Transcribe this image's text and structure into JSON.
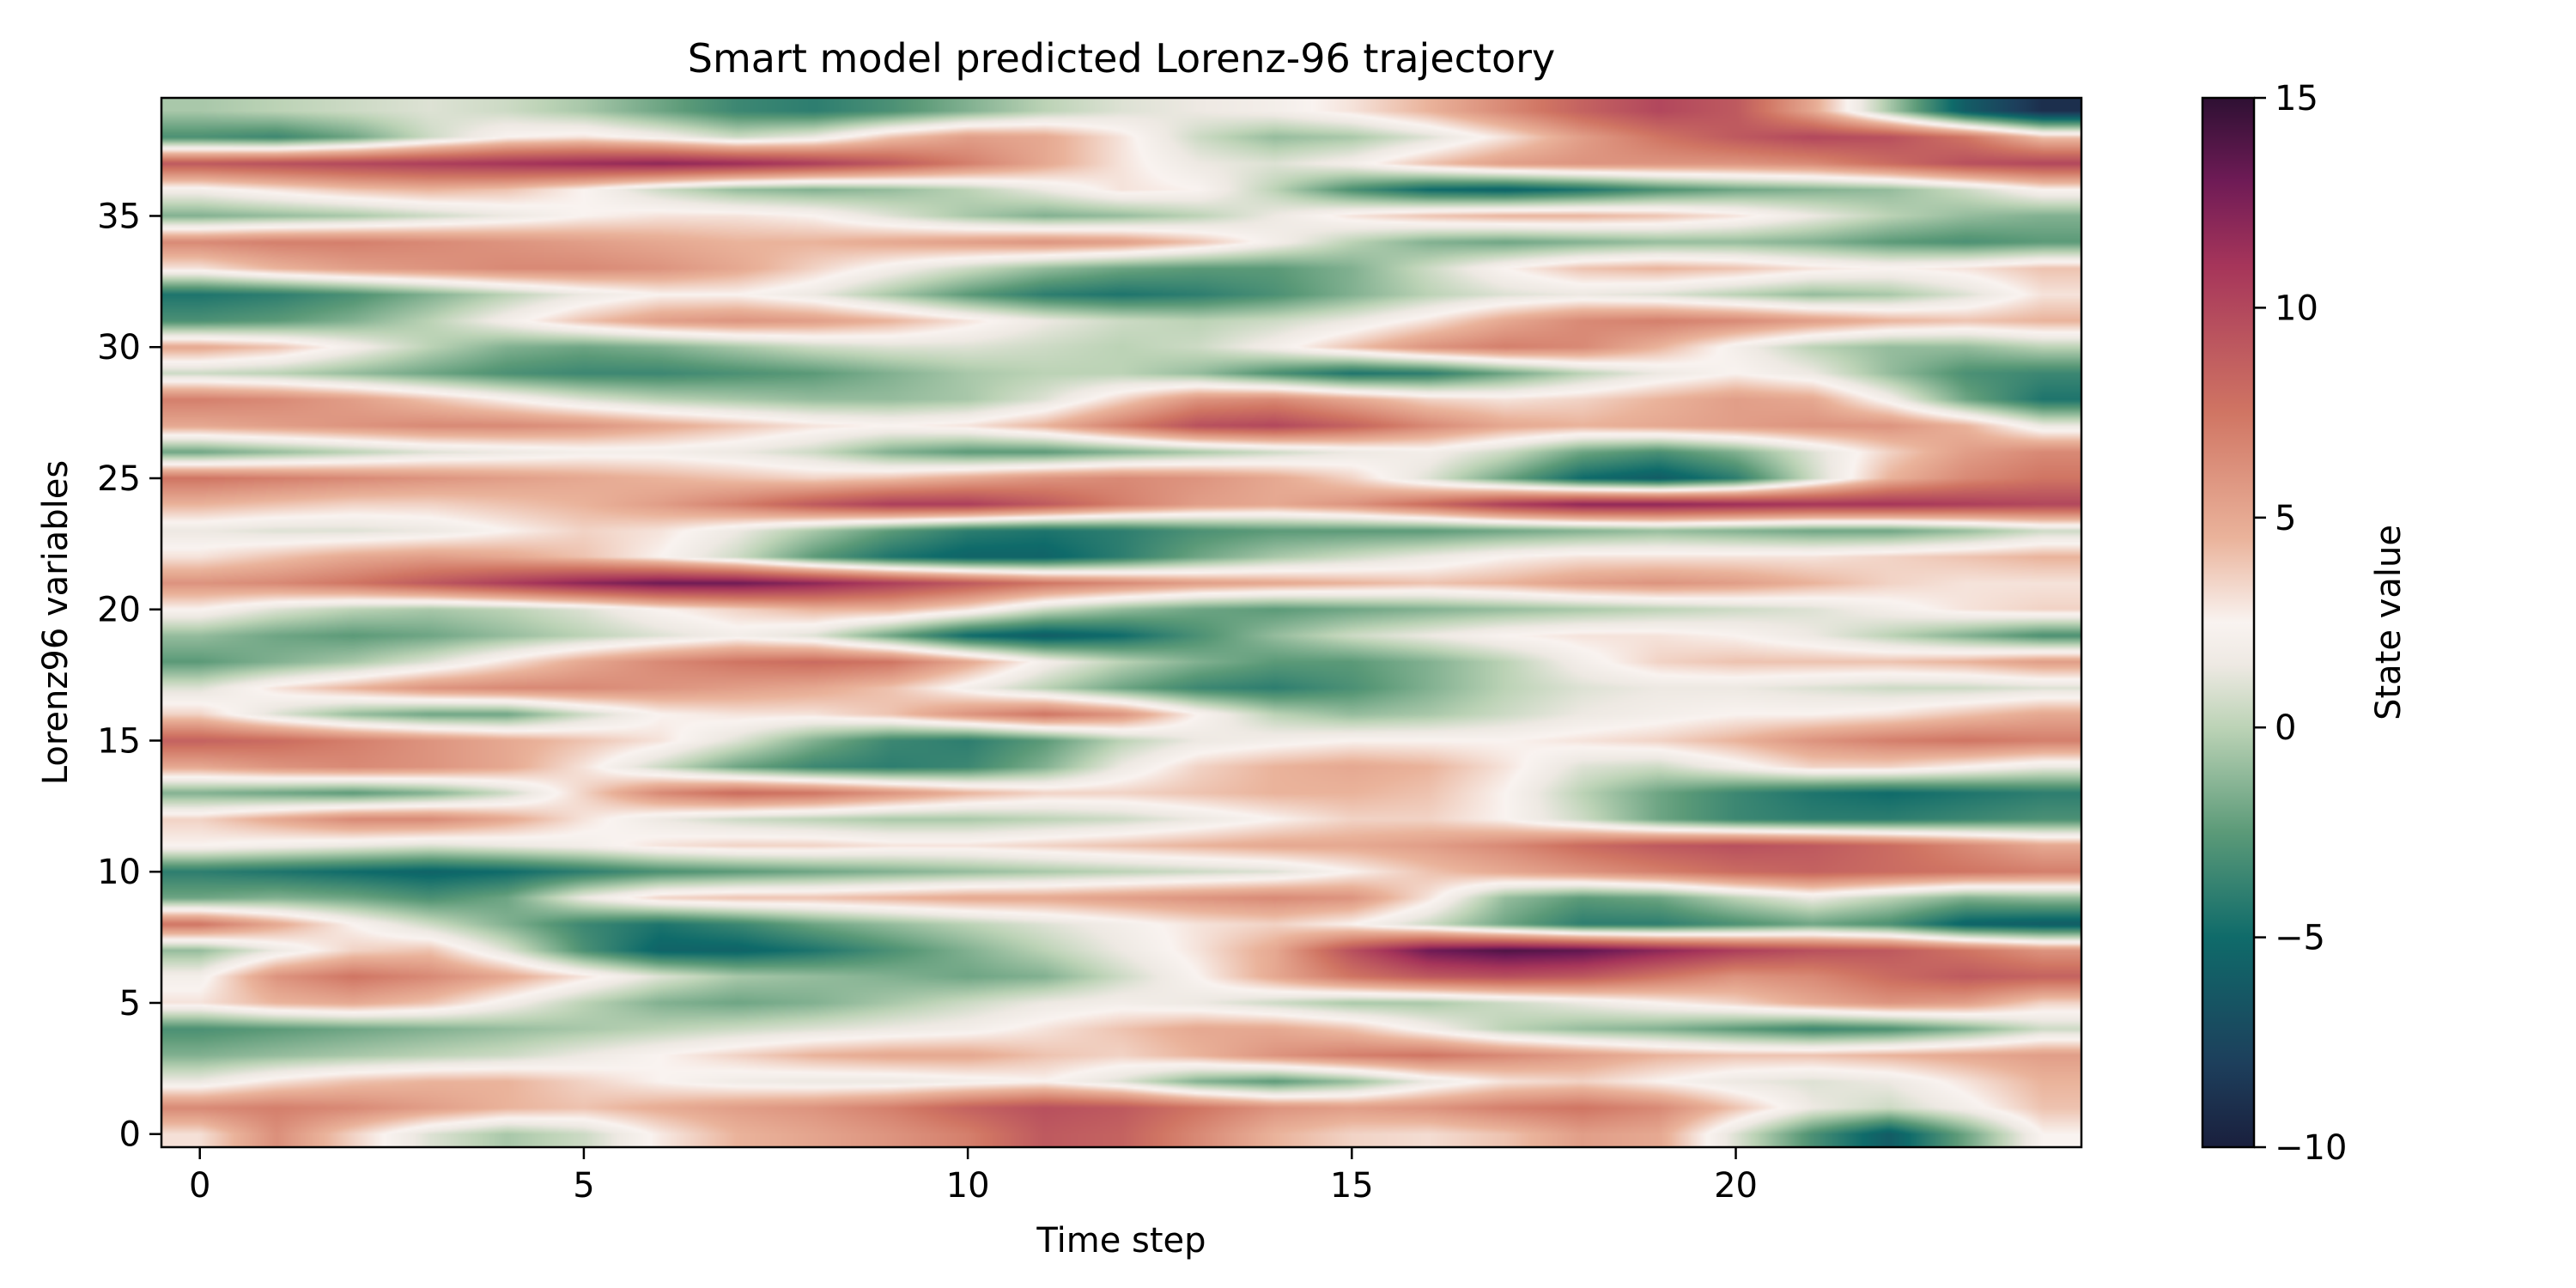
{
  "chart_data": {
    "type": "heatmap",
    "title": "Smart model predicted Lorenz-96 trajectory",
    "xlabel": "Time step",
    "ylabel": "Lorenz96 variables",
    "x_ticks": [
      0,
      5,
      10,
      15,
      20
    ],
    "y_ticks": [
      0,
      5,
      10,
      15,
      20,
      25,
      30,
      35
    ],
    "xlim": [
      -0.5,
      24.5
    ],
    "ylim": [
      -0.5,
      39.5
    ],
    "n_time_steps": 25,
    "n_variables": 40,
    "colorbar": {
      "label": "State value",
      "range": [
        -10,
        15
      ],
      "ticks": [
        15,
        10,
        5,
        0,
        -5,
        -10
      ],
      "tick_labels": [
        "15",
        "10",
        "5",
        "0",
        "−5",
        "−10"
      ]
    },
    "colors": {
      "scale": [
        {
          "v": -10.0,
          "color": "#1a1f3d"
        },
        {
          "v": -8.0,
          "color": "#1d3f5c"
        },
        {
          "v": -5.0,
          "color": "#0f6b6a"
        },
        {
          "v": -2.5,
          "color": "#5b9a78"
        },
        {
          "v": 0.0,
          "color": "#bcd3b6"
        },
        {
          "v": 1.5,
          "color": "#eee9e3"
        },
        {
          "v": 2.5,
          "color": "#f9f3f0"
        },
        {
          "v": 4.5,
          "color": "#eab39b"
        },
        {
          "v": 7.5,
          "color": "#d07563"
        },
        {
          "v": 11.0,
          "color": "#a6355a"
        },
        {
          "v": 13.0,
          "color": "#6f1b56"
        },
        {
          "v": 15.0,
          "color": "#2e1033"
        }
      ]
    },
    "values": [
      [
        3.1,
        6.2,
        3.5,
        1.0,
        -0.5,
        0.5,
        2.8,
        4.5,
        5.2,
        6.0,
        7.0,
        9.0,
        8.5,
        6.5,
        4.5,
        3.5,
        3.2,
        4.0,
        5.5,
        5.0,
        1.0,
        -3.0,
        -6.0,
        -2.0,
        2.5
      ],
      [
        6.5,
        7.0,
        6.5,
        5.5,
        4.5,
        4.0,
        4.8,
        5.5,
        6.0,
        7.0,
        8.5,
        9.5,
        9.0,
        7.5,
        6.0,
        5.5,
        6.0,
        7.0,
        7.5,
        6.5,
        4.0,
        1.5,
        0.5,
        2.0,
        4.0
      ],
      [
        1.5,
        3.0,
        4.0,
        4.5,
        4.5,
        3.5,
        2.5,
        1.8,
        1.5,
        1.5,
        2.0,
        2.5,
        1.0,
        -1.5,
        -2.5,
        -1.0,
        1.5,
        3.0,
        3.5,
        2.5,
        1.5,
        1.0,
        1.5,
        3.0,
        4.5
      ],
      [
        -1.5,
        -1.0,
        -0.5,
        0.0,
        0.5,
        1.5,
        2.5,
        3.5,
        4.5,
        5.0,
        5.0,
        4.0,
        3.5,
        4.5,
        6.0,
        7.0,
        7.5,
        6.5,
        5.5,
        4.5,
        4.0,
        4.0,
        4.5,
        5.0,
        5.5
      ],
      [
        -3.0,
        -2.5,
        -2.0,
        -1.5,
        -1.0,
        -0.5,
        0.0,
        0.5,
        1.0,
        1.5,
        2.0,
        3.0,
        4.0,
        5.0,
        5.0,
        4.0,
        2.0,
        0.0,
        -1.0,
        -1.5,
        -2.5,
        -3.5,
        -3.0,
        -1.5,
        0.5
      ],
      [
        3.0,
        4.5,
        5.0,
        4.0,
        2.0,
        0.0,
        -1.5,
        -2.0,
        -1.5,
        -0.5,
        0.5,
        1.5,
        2.0,
        1.5,
        0.5,
        -0.5,
        -0.5,
        0.5,
        1.5,
        2.5,
        3.5,
        5.0,
        6.0,
        5.5,
        3.5
      ],
      [
        2.0,
        6.0,
        7.5,
        6.5,
        5.0,
        3.0,
        1.0,
        -0.5,
        -1.0,
        -1.5,
        -2.0,
        -1.5,
        0.5,
        2.5,
        5.0,
        7.5,
        9.0,
        9.5,
        9.0,
        7.5,
        6.0,
        6.5,
        8.0,
        9.0,
        8.5
      ],
      [
        -1.0,
        1.5,
        3.5,
        4.0,
        1.0,
        -3.0,
        -5.5,
        -5.5,
        -4.5,
        -3.0,
        -1.5,
        0.0,
        1.5,
        3.0,
        5.0,
        9.5,
        13.0,
        14.0,
        13.5,
        12.0,
        10.5,
        9.5,
        9.0,
        7.5,
        6.0
      ],
      [
        7.5,
        5.0,
        2.5,
        0.5,
        -1.5,
        -3.5,
        -4.5,
        -3.5,
        -2.0,
        -1.0,
        0.0,
        1.0,
        2.0,
        3.0,
        3.5,
        2.5,
        0.5,
        -2.0,
        -4.0,
        -4.0,
        -3.0,
        -2.0,
        -3.0,
        -5.5,
        -6.0
      ],
      [
        -2.0,
        -1.5,
        -2.0,
        -3.0,
        -2.0,
        1.5,
        3.5,
        4.0,
        4.0,
        4.5,
        5.0,
        5.0,
        5.5,
        6.0,
        6.5,
        6.0,
        3.0,
        -1.0,
        -2.5,
        -2.0,
        0.0,
        1.5,
        0.0,
        -1.5,
        -1.0
      ],
      [
        -4.0,
        -4.5,
        -5.0,
        -5.5,
        -5.0,
        -4.0,
        -3.0,
        -2.5,
        -2.0,
        -1.5,
        -1.0,
        -0.5,
        0.0,
        0.5,
        1.0,
        2.5,
        4.0,
        5.0,
        6.0,
        7.0,
        8.0,
        8.5,
        8.0,
        7.5,
        7.0
      ],
      [
        2.5,
        2.0,
        1.5,
        1.0,
        1.5,
        2.0,
        3.0,
        3.5,
        3.5,
        3.0,
        3.0,
        3.5,
        4.0,
        4.5,
        5.0,
        5.0,
        5.5,
        6.5,
        8.0,
        9.0,
        9.5,
        9.0,
        8.0,
        6.5,
        5.0
      ],
      [
        3.5,
        5.0,
        6.5,
        6.5,
        5.0,
        3.0,
        1.5,
        0.5,
        0.0,
        -0.5,
        -0.5,
        0.0,
        0.5,
        1.5,
        2.5,
        3.5,
        3.5,
        2.5,
        0.5,
        -2.0,
        -3.5,
        -4.0,
        -4.0,
        -3.5,
        -3.0
      ],
      [
        -1.5,
        -2.0,
        -2.5,
        -1.5,
        0.5,
        3.5,
        6.5,
        8.0,
        7.5,
        6.0,
        4.5,
        3.5,
        3.5,
        4.0,
        4.5,
        4.5,
        4.0,
        2.5,
        0.0,
        -2.0,
        -3.5,
        -4.5,
        -5.0,
        -4.5,
        -4.0
      ],
      [
        5.0,
        6.0,
        6.5,
        6.0,
        5.0,
        3.0,
        0.5,
        -2.0,
        -3.5,
        -4.0,
        -3.5,
        -1.5,
        1.5,
        3.5,
        4.5,
        5.0,
        4.5,
        3.0,
        1.0,
        0.5,
        2.0,
        3.5,
        3.5,
        2.5,
        1.5
      ],
      [
        8.5,
        8.0,
        7.0,
        6.0,
        5.0,
        4.0,
        3.0,
        1.0,
        -1.5,
        -3.5,
        -4.0,
        -2.5,
        0.0,
        1.5,
        2.0,
        2.5,
        2.5,
        2.5,
        3.0,
        3.5,
        4.5,
        6.0,
        7.0,
        7.5,
        7.0
      ],
      [
        3.5,
        1.0,
        -1.0,
        -2.0,
        -2.0,
        0.5,
        2.5,
        3.0,
        3.0,
        4.0,
        6.0,
        7.5,
        6.0,
        2.5,
        0.0,
        -1.0,
        -0.5,
        0.5,
        1.5,
        2.0,
        2.5,
        2.5,
        3.0,
        4.0,
        5.0
      ],
      [
        1.0,
        3.0,
        4.5,
        6.0,
        6.5,
        6.5,
        6.0,
        5.5,
        5.0,
        4.0,
        2.0,
        0.0,
        -2.0,
        -3.5,
        -4.0,
        -3.0,
        -1.5,
        0.0,
        1.0,
        1.5,
        1.5,
        1.0,
        0.5,
        0.5,
        1.0
      ],
      [
        -2.5,
        -1.5,
        -0.5,
        1.0,
        3.0,
        5.0,
        6.5,
        7.5,
        8.0,
        7.5,
        5.0,
        2.0,
        0.0,
        -1.5,
        -2.5,
        -2.5,
        -1.5,
        0.0,
        2.0,
        3.5,
        4.0,
        4.0,
        4.0,
        4.5,
        5.5
      ],
      [
        -1.0,
        -2.0,
        -2.5,
        -2.0,
        -1.0,
        0.0,
        1.0,
        2.0,
        1.0,
        -2.0,
        -5.0,
        -6.0,
        -5.0,
        -3.0,
        -1.0,
        0.5,
        1.5,
        2.5,
        3.0,
        3.0,
        2.5,
        1.5,
        0.0,
        -1.5,
        -3.0
      ],
      [
        2.5,
        1.0,
        0.0,
        -0.5,
        0.0,
        1.0,
        2.5,
        3.5,
        4.5,
        4.5,
        3.0,
        0.5,
        -1.0,
        -2.0,
        -2.5,
        -2.0,
        -1.5,
        -1.0,
        -0.5,
        0.0,
        0.5,
        1.0,
        2.0,
        3.0,
        3.5
      ],
      [
        6.0,
        6.5,
        7.5,
        9.0,
        10.5,
        12.0,
        13.0,
        13.0,
        12.0,
        10.5,
        9.0,
        7.5,
        6.5,
        5.5,
        5.0,
        4.5,
        4.0,
        4.5,
        5.5,
        6.0,
        5.5,
        4.5,
        3.5,
        3.0,
        3.0
      ],
      [
        3.0,
        4.0,
        5.0,
        5.5,
        5.0,
        4.0,
        2.5,
        0.5,
        -2.5,
        -4.5,
        -5.5,
        -5.5,
        -4.0,
        -2.0,
        -0.5,
        0.5,
        1.5,
        2.5,
        3.0,
        3.0,
        3.0,
        3.0,
        3.5,
        4.0,
        4.5
      ],
      [
        1.5,
        1.0,
        1.0,
        1.5,
        2.5,
        3.5,
        3.0,
        1.5,
        -0.5,
        -2.5,
        -4.0,
        -4.5,
        -4.0,
        -3.0,
        -2.5,
        -2.5,
        -2.5,
        -2.0,
        -1.5,
        -1.0,
        -1.5,
        -2.0,
        -2.0,
        -1.0,
        0.5
      ],
      [
        4.5,
        4.0,
        3.5,
        3.5,
        4.0,
        4.5,
        5.5,
        7.0,
        9.0,
        10.5,
        10.5,
        9.0,
        7.0,
        5.5,
        5.0,
        6.0,
        8.0,
        10.5,
        12.0,
        12.0,
        11.5,
        11.0,
        11.0,
        10.5,
        10.0
      ],
      [
        7.5,
        7.0,
        6.5,
        6.0,
        5.5,
        5.0,
        4.5,
        4.0,
        3.5,
        4.0,
        5.0,
        6.0,
        6.5,
        6.0,
        5.0,
        3.5,
        1.0,
        -2.0,
        -5.0,
        -6.0,
        -4.0,
        0.5,
        4.5,
        6.5,
        7.5
      ],
      [
        -2.0,
        -1.0,
        0.0,
        1.0,
        1.5,
        2.0,
        2.0,
        1.5,
        0.5,
        -1.5,
        -2.5,
        -2.5,
        -1.5,
        -0.5,
        0.5,
        1.5,
        2.0,
        0.5,
        -2.0,
        -3.0,
        -1.5,
        1.0,
        3.5,
        5.5,
        6.5
      ],
      [
        5.0,
        5.5,
        6.0,
        6.5,
        6.5,
        6.0,
        5.0,
        4.0,
        3.0,
        2.5,
        3.0,
        4.5,
        7.0,
        9.5,
        10.0,
        8.5,
        6.5,
        5.0,
        4.5,
        5.0,
        5.5,
        6.0,
        6.0,
        4.5,
        1.5
      ],
      [
        7.0,
        6.5,
        5.5,
        4.0,
        2.5,
        1.0,
        0.0,
        -0.5,
        -1.0,
        -1.0,
        -0.5,
        1.0,
        3.5,
        6.0,
        6.5,
        5.0,
        3.5,
        3.0,
        3.5,
        4.5,
        5.5,
        5.0,
        2.0,
        -2.0,
        -4.5
      ],
      [
        0.5,
        0.0,
        -1.0,
        -2.0,
        -3.0,
        -3.5,
        -3.5,
        -3.0,
        -2.5,
        -1.5,
        -0.5,
        0.0,
        0.0,
        -1.0,
        -3.0,
        -4.5,
        -4.0,
        -2.0,
        0.0,
        1.5,
        2.5,
        1.5,
        -1.0,
        -3.0,
        -3.5
      ],
      [
        5.0,
        4.0,
        2.0,
        0.0,
        -1.5,
        -2.0,
        -1.5,
        -0.5,
        0.5,
        1.0,
        1.0,
        0.5,
        0.0,
        0.5,
        2.0,
        4.0,
        6.0,
        7.0,
        6.5,
        4.5,
        2.0,
        0.0,
        -1.0,
        -1.0,
        0.0
      ],
      [
        -3.0,
        -2.5,
        -1.5,
        0.0,
        2.0,
        4.0,
        5.5,
        6.0,
        5.5,
        4.5,
        3.0,
        1.5,
        0.5,
        0.0,
        0.5,
        1.5,
        3.0,
        5.0,
        6.5,
        7.0,
        6.5,
        5.5,
        4.5,
        4.0,
        4.5
      ],
      [
        -4.5,
        -4.0,
        -3.0,
        -1.5,
        0.0,
        1.5,
        2.5,
        2.5,
        1.5,
        -0.5,
        -2.5,
        -4.0,
        -4.5,
        -4.0,
        -3.0,
        -1.5,
        0.0,
        1.0,
        1.5,
        1.0,
        0.0,
        -1.0,
        -0.5,
        1.0,
        3.0
      ],
      [
        3.0,
        4.5,
        5.5,
        6.0,
        6.5,
        6.5,
        6.0,
        5.0,
        3.5,
        2.0,
        0.5,
        -1.0,
        -2.0,
        -2.5,
        -2.5,
        -1.5,
        0.5,
        2.5,
        4.0,
        4.5,
        4.0,
        3.0,
        2.5,
        3.0,
        4.0
      ],
      [
        6.5,
        7.0,
        7.0,
        6.5,
        6.0,
        5.5,
        5.0,
        4.5,
        4.5,
        5.0,
        5.5,
        6.0,
        5.5,
        4.0,
        2.0,
        0.0,
        -1.5,
        -2.0,
        -1.5,
        -1.0,
        -1.0,
        -1.5,
        -2.5,
        -3.0,
        -2.5
      ],
      [
        -1.5,
        -1.0,
        -0.5,
        0.5,
        1.5,
        2.5,
        3.0,
        3.0,
        2.5,
        1.0,
        -0.5,
        -1.5,
        -1.0,
        0.0,
        1.5,
        3.0,
        4.0,
        4.5,
        4.5,
        4.0,
        3.0,
        1.5,
        0.0,
        -1.0,
        -1.5
      ],
      [
        2.0,
        3.0,
        4.0,
        4.5,
        4.0,
        2.5,
        0.5,
        -1.0,
        -1.5,
        -1.0,
        0.0,
        1.5,
        3.0,
        2.5,
        0.0,
        -3.0,
        -5.0,
        -5.5,
        -4.5,
        -3.0,
        -2.0,
        -1.5,
        -1.0,
        0.5,
        2.5
      ],
      [
        9.0,
        9.5,
        10.0,
        10.5,
        11.0,
        11.5,
        12.0,
        11.5,
        10.5,
        9.0,
        7.0,
        5.0,
        3.0,
        1.5,
        1.0,
        2.0,
        4.0,
        5.5,
        6.0,
        6.0,
        6.0,
        6.5,
        8.0,
        9.5,
        10.0
      ],
      [
        -3.0,
        -3.5,
        -2.0,
        0.5,
        2.5,
        3.0,
        2.0,
        0.5,
        1.5,
        4.0,
        5.5,
        5.0,
        3.0,
        0.5,
        -1.0,
        -0.5,
        1.0,
        3.0,
        5.5,
        7.5,
        9.0,
        10.0,
        9.5,
        7.5,
        4.0
      ],
      [
        -0.5,
        0.0,
        0.5,
        1.0,
        0.5,
        -0.5,
        -2.0,
        -3.5,
        -4.0,
        -3.0,
        -1.5,
        0.0,
        1.0,
        1.5,
        2.0,
        3.0,
        4.5,
        6.5,
        8.5,
        10.0,
        9.0,
        5.0,
        -0.5,
        -6.0,
        -9.0
      ]
    ]
  }
}
